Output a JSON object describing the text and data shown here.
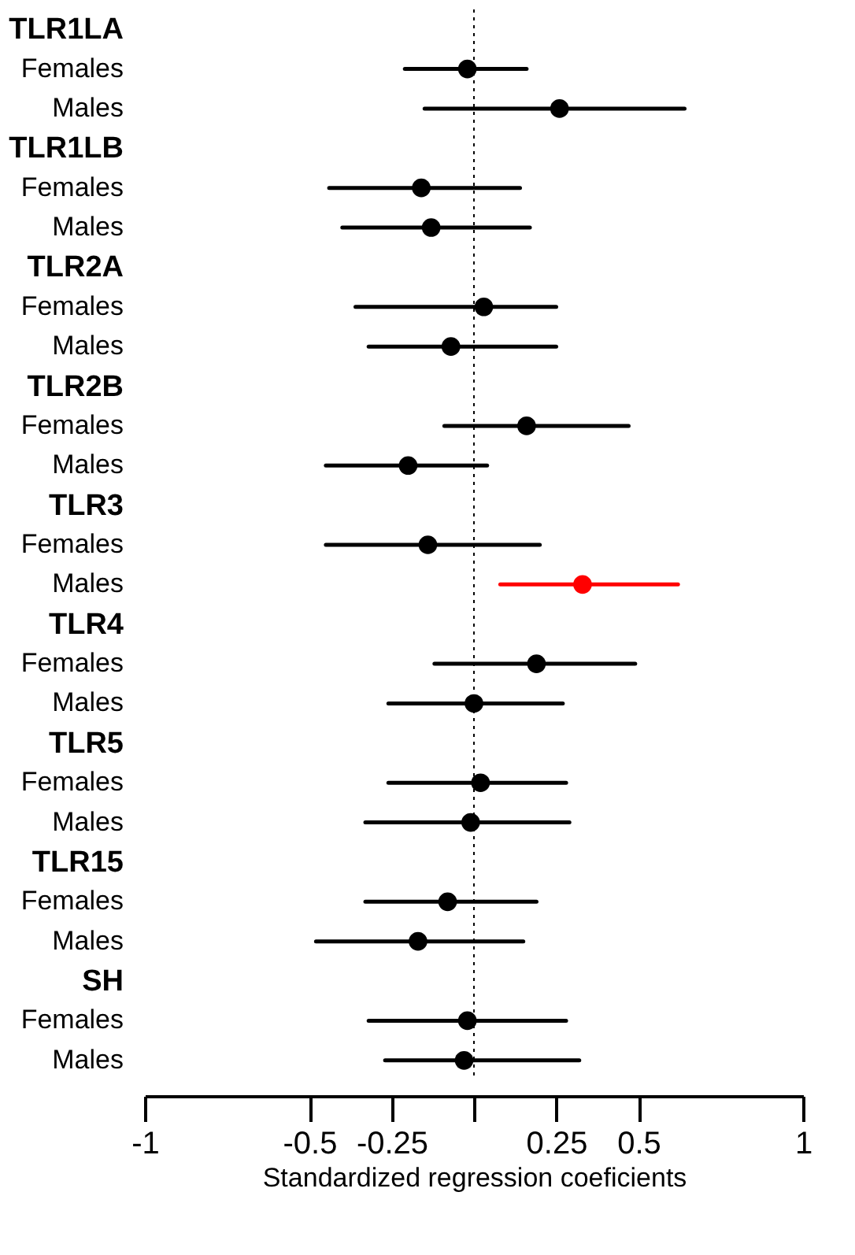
{
  "chart_data": {
    "type": "scatter",
    "orientation": "horizontal",
    "xlabel": "Standardized regression coeficients",
    "categories": [
      "TLR1LA",
      "Females",
      "Males",
      "TLR1LB",
      "Females",
      "Males",
      "TLR2A",
      "Females",
      "Males",
      "TLR2B",
      "Females",
      "Males",
      "TLR3",
      "Females",
      "Males",
      "TLR4",
      "Females",
      "Males",
      "TLR5",
      "Females",
      "Males",
      "TLR15",
      "Females",
      "Males",
      "SH",
      "Females",
      "Males"
    ],
    "values": [
      null,
      -0.02,
      0.26,
      null,
      -0.16,
      -0.13,
      null,
      0.03,
      -0.07,
      null,
      0.16,
      -0.2,
      null,
      -0.14,
      0.33,
      null,
      0.19,
      0.0,
      null,
      0.02,
      -0.01,
      null,
      -0.08,
      -0.17,
      null,
      -0.02,
      -0.03
    ],
    "errors": [
      null,
      [
        -0.21,
        0.16
      ],
      [
        -0.15,
        0.64
      ],
      null,
      [
        -0.44,
        0.14
      ],
      [
        -0.4,
        0.17
      ],
      null,
      [
        -0.36,
        0.25
      ],
      [
        -0.32,
        0.25
      ],
      null,
      [
        -0.09,
        0.47
      ],
      [
        -0.45,
        0.04
      ],
      null,
      [
        -0.45,
        0.2
      ],
      [
        0.08,
        0.62
      ],
      null,
      [
        -0.12,
        0.49
      ],
      [
        -0.26,
        0.27
      ],
      null,
      [
        -0.26,
        0.28
      ],
      [
        -0.33,
        0.29
      ],
      null,
      [
        -0.33,
        0.19
      ],
      [
        -0.48,
        0.15
      ],
      null,
      [
        -0.32,
        0.28
      ],
      [
        -0.27,
        0.32
      ]
    ],
    "colors": [
      null,
      "#000000",
      "#000000",
      null,
      "#000000",
      "#000000",
      null,
      "#000000",
      "#000000",
      null,
      "#000000",
      "#000000",
      null,
      "#000000",
      "#ff0000",
      null,
      "#000000",
      "#000000",
      null,
      "#000000",
      "#000000",
      null,
      "#000000",
      "#000000",
      null,
      "#000000",
      "#000000"
    ],
    "xlim": [
      -1,
      1
    ],
    "xticks": [
      -1,
      -0.5,
      -0.25,
      {
        "value": 0,
        "label": null
      },
      0.25,
      0.5,
      1
    ],
    "ref_lines": [
      {
        "axis": "x",
        "value": 0,
        "line_style": "dotted",
        "color": "#000000"
      }
    ],
    "marker": "circle",
    "grid": false
  }
}
